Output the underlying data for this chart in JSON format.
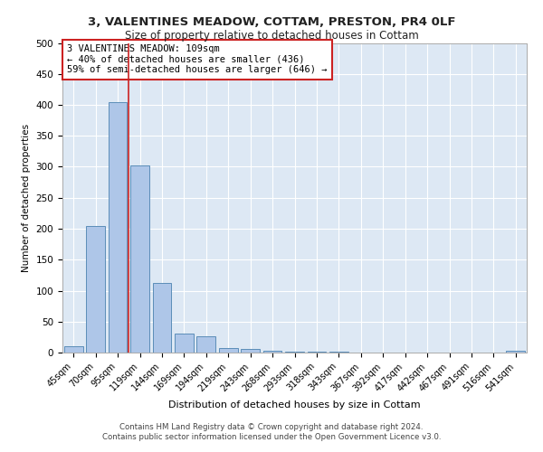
{
  "title1": "3, VALENTINES MEADOW, COTTAM, PRESTON, PR4 0LF",
  "title2": "Size of property relative to detached houses in Cottam",
  "xlabel": "Distribution of detached houses by size in Cottam",
  "ylabel": "Number of detached properties",
  "categories": [
    "45sqm",
    "70sqm",
    "95sqm",
    "119sqm",
    "144sqm",
    "169sqm",
    "194sqm",
    "219sqm",
    "243sqm",
    "268sqm",
    "293sqm",
    "318sqm",
    "343sqm",
    "367sqm",
    "392sqm",
    "417sqm",
    "442sqm",
    "467sqm",
    "491sqm",
    "516sqm",
    "541sqm"
  ],
  "values": [
    10,
    205,
    405,
    302,
    112,
    30,
    27,
    8,
    6,
    3,
    2,
    2,
    1,
    0,
    0,
    0,
    0,
    0,
    0,
    0,
    3
  ],
  "bar_color": "#aec6e8",
  "bar_edge_color": "#5b8db8",
  "property_size": 109,
  "property_name": "3 VALENTINES MEADOW",
  "pct_smaller": 40,
  "count_smaller": 436,
  "pct_larger_semi": 59,
  "count_larger_semi": 646,
  "vline_color": "#cc2222",
  "annotation_box_edge_color": "#cc2222",
  "ylim": [
    0,
    500
  ],
  "yticks": [
    0,
    50,
    100,
    150,
    200,
    250,
    300,
    350,
    400,
    450,
    500
  ],
  "bg_color": "#dde8f4",
  "grid_color": "#ffffff",
  "footer1": "Contains HM Land Registry data © Crown copyright and database right 2024.",
  "footer2": "Contains public sector information licensed under the Open Government Licence v3.0."
}
